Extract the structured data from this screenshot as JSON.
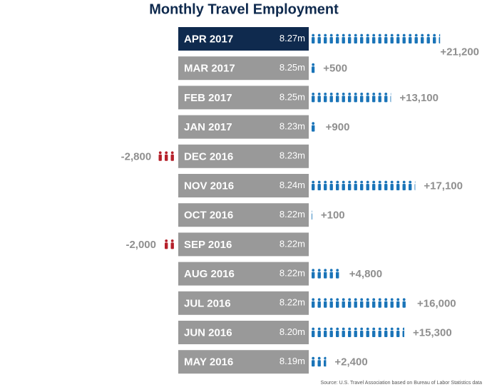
{
  "chart_data": {
    "type": "pictograph",
    "title": "Monthly Travel Employment",
    "categories": [
      "APR 2017",
      "MAR 2017",
      "FEB 2017",
      "JAN 2017",
      "DEC 2016",
      "NOV 2016",
      "OCT 2016",
      "SEP 2016",
      "AUG 2016",
      "JUL 2016",
      "JUN 2016",
      "MAY 2016"
    ],
    "totals": {
      "values": [
        8.27,
        8.25,
        8.25,
        8.23,
        8.23,
        8.24,
        8.22,
        8.22,
        8.22,
        8.22,
        8.2,
        8.19
      ],
      "value_labels": [
        "8.27m",
        "8.25m",
        "8.25m",
        "8.23m",
        "8.23m",
        "8.24m",
        "8.22m",
        "8.22m",
        "8.22m",
        "8.22m",
        "8.20m",
        "8.19m"
      ]
    },
    "changes": {
      "values": [
        21200,
        500,
        13100,
        900,
        -2800,
        17100,
        100,
        -2000,
        4800,
        16000,
        15300,
        2400
      ],
      "value_labels": [
        "+21,200",
        "+500",
        "+13,100",
        "+900",
        "-2,800",
        "+17,100",
        "+100",
        "-2,000",
        "+4,800",
        "+16,000",
        "+15,300",
        "+2,400"
      ]
    },
    "highlight_color": "#0f2a4e",
    "box_color": "#999999",
    "positive_color": "#1a74b8",
    "negative_color": "#b5202a",
    "source": "Source: U.S. Travel Association based on Bureau of Labor Statistics data"
  }
}
